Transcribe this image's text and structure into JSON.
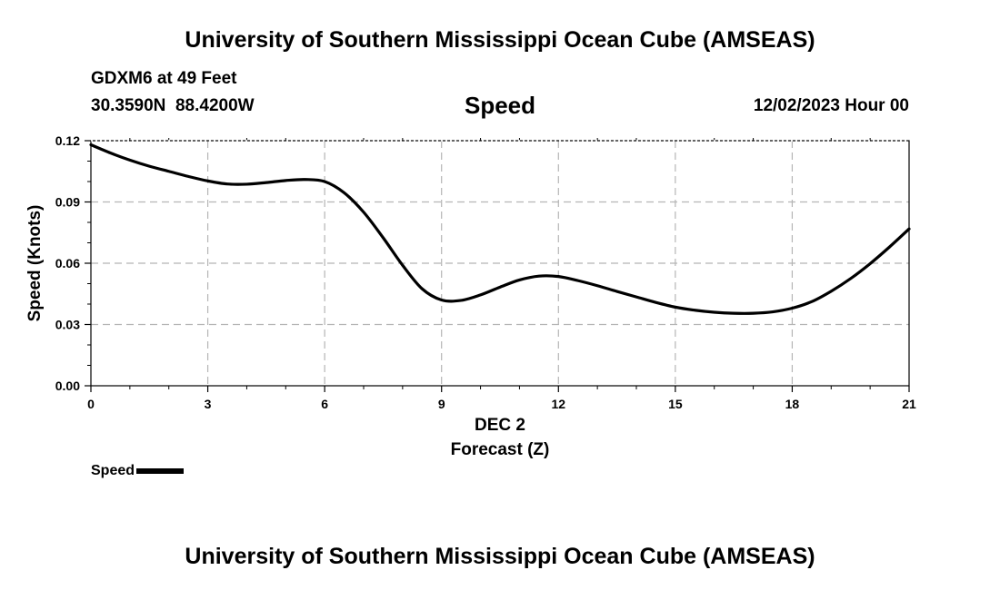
{
  "header": {
    "title": "University of Southern Mississippi Ocean Cube (AMSEAS)",
    "station": "GDXM6 at 49 Feet",
    "coords": "30.3590N  88.4200W",
    "datetime": "12/02/2023 Hour 00"
  },
  "footer": {
    "title": "University of Southern Mississippi Ocean Cube (AMSEAS)"
  },
  "legend": {
    "label": "Speed"
  },
  "chart_data": {
    "type": "line",
    "title": "Speed",
    "xlabel": "Forecast (Z)",
    "xlabel_date": "DEC 2",
    "ylabel": "Speed (Knots)",
    "xlim": [
      0,
      21
    ],
    "ylim": [
      0,
      0.12
    ],
    "x_ticks": [
      0,
      3,
      6,
      9,
      12,
      15,
      18,
      21
    ],
    "x_tick_labels": [
      "0",
      "3",
      "6",
      "9",
      "12",
      "15",
      "18",
      "21"
    ],
    "y_ticks": [
      0,
      0.03,
      0.06,
      0.09,
      0.12
    ],
    "y_tick_labels": [
      "0.00",
      "0.03",
      "0.06",
      "0.09",
      "0.12"
    ],
    "grid": true,
    "legend_position": "bottom-left",
    "series": [
      {
        "name": "Speed",
        "color": "#000000",
        "x": [
          0,
          0.5,
          1,
          1.5,
          2,
          2.5,
          3,
          3.5,
          4,
          4.5,
          5,
          5.5,
          6,
          6.5,
          7,
          7.5,
          8,
          8.5,
          9,
          9.5,
          10,
          10.5,
          11,
          11.5,
          12,
          12.5,
          13,
          13.5,
          14,
          14.5,
          15,
          15.5,
          16,
          16.5,
          17,
          17.5,
          18,
          18.5,
          19,
          19.5,
          20,
          20.5,
          21
        ],
        "y": [
          0.118,
          0.114,
          0.1105,
          0.1075,
          0.105,
          0.1025,
          0.1003,
          0.0988,
          0.0987,
          0.0995,
          0.1005,
          0.101,
          0.1,
          0.0945,
          0.085,
          0.0725,
          0.059,
          0.0475,
          0.042,
          0.0418,
          0.0445,
          0.0483,
          0.0518,
          0.0537,
          0.0535,
          0.0515,
          0.049,
          0.0462,
          0.0435,
          0.0408,
          0.0385,
          0.037,
          0.036,
          0.0355,
          0.0355,
          0.0362,
          0.038,
          0.0412,
          0.0463,
          0.0525,
          0.0598,
          0.068,
          0.0768
        ]
      }
    ]
  }
}
